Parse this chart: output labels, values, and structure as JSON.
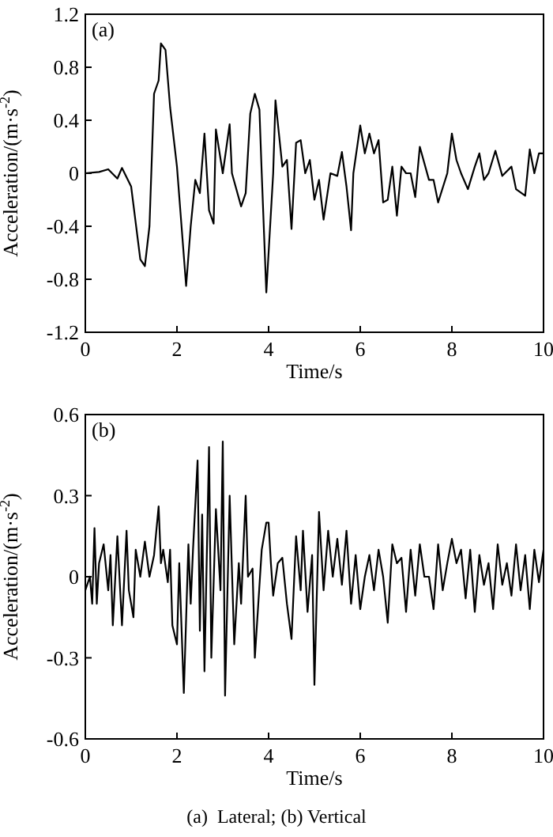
{
  "chart_data": [
    {
      "type": "line",
      "title": "(a)",
      "xlabel": "Time/s",
      "ylabel": "Acceleration/(m·s$^{-2}$)",
      "xlim": [
        0,
        10
      ],
      "xticks": [
        0,
        2,
        4,
        6,
        8,
        10
      ],
      "ylim": [
        -1.2,
        1.2
      ],
      "yticks": [
        -1.2,
        -0.8,
        -0.4,
        0,
        0.4,
        0.8,
        1.2
      ],
      "grid": false,
      "series": [
        {
          "color": "#000000",
          "x": [
            0,
            0.3,
            0.5,
            0.7,
            0.8,
            0.9,
            1.0,
            1.2,
            1.3,
            1.4,
            1.5,
            1.6,
            1.65,
            1.75,
            1.85,
            2.0,
            2.1,
            2.2,
            2.3,
            2.4,
            2.5,
            2.6,
            2.7,
            2.8,
            2.85,
            3.0,
            3.15,
            3.2,
            3.4,
            3.5,
            3.6,
            3.7,
            3.8,
            3.85,
            3.95,
            4.1,
            4.15,
            4.3,
            4.4,
            4.5,
            4.6,
            4.7,
            4.8,
            4.9,
            5.0,
            5.1,
            5.2,
            5.35,
            5.5,
            5.6,
            5.7,
            5.8,
            5.85,
            6.0,
            6.1,
            6.2,
            6.3,
            6.4,
            6.5,
            6.6,
            6.7,
            6.8,
            6.9,
            7.0,
            7.1,
            7.2,
            7.3,
            7.5,
            7.6,
            7.7,
            7.9,
            8.0,
            8.1,
            8.2,
            8.35,
            8.5,
            8.6,
            8.7,
            8.8,
            8.95,
            9.1,
            9.3,
            9.4,
            9.6,
            9.7,
            9.8,
            9.9,
            10
          ],
          "values": [
            0,
            0.01,
            0.03,
            -0.04,
            0.04,
            -0.03,
            -0.1,
            -0.65,
            -0.7,
            -0.4,
            0.6,
            0.7,
            0.98,
            0.93,
            0.5,
            0.05,
            -0.4,
            -0.85,
            -0.4,
            -0.05,
            -0.15,
            0.3,
            -0.28,
            -0.38,
            0.33,
            0,
            0.37,
            0,
            -0.25,
            -0.15,
            0.45,
            0.6,
            0.48,
            0,
            -0.9,
            0,
            0.55,
            0.05,
            0.1,
            -0.42,
            0.23,
            0.25,
            0,
            0.1,
            -0.2,
            -0.05,
            -0.35,
            0,
            -0.02,
            0.16,
            -0.1,
            -0.43,
            0,
            0.36,
            0.15,
            0.3,
            0.15,
            0.25,
            -0.22,
            -0.2,
            0.05,
            -0.32,
            0.05,
            0,
            0,
            -0.18,
            0.2,
            -0.05,
            -0.05,
            -0.22,
            0,
            0.3,
            0.1,
            0,
            -0.12,
            0.05,
            0.15,
            -0.05,
            0,
            0.17,
            -0.02,
            0.05,
            -0.12,
            -0.17,
            0.18,
            0,
            0.15,
            0.15
          ]
        }
      ]
    },
    {
      "type": "line",
      "title": "(b)",
      "xlabel": "Time/s",
      "ylabel": "Acceleration/(m·s$^{-2}$)",
      "xlim": [
        0,
        10
      ],
      "xticks": [
        0,
        2,
        4,
        6,
        8,
        10
      ],
      "ylim": [
        -0.6,
        0.6
      ],
      "yticks": [
        -0.6,
        -0.3,
        0,
        0.3,
        0.6
      ],
      "grid": false,
      "annotations": [
        "(a)  Lateral; (b) Vertical"
      ],
      "series": [
        {
          "color": "#000000",
          "x": [
            0,
            0.1,
            0.15,
            0.2,
            0.25,
            0.3,
            0.4,
            0.5,
            0.55,
            0.6,
            0.7,
            0.8,
            0.9,
            0.95,
            1.05,
            1.1,
            1.2,
            1.3,
            1.4,
            1.5,
            1.6,
            1.65,
            1.7,
            1.8,
            1.85,
            1.9,
            2.0,
            2.05,
            2.15,
            2.25,
            2.3,
            2.35,
            2.45,
            2.5,
            2.55,
            2.6,
            2.7,
            2.75,
            2.85,
            2.95,
            3.0,
            3.05,
            3.15,
            3.25,
            3.35,
            3.4,
            3.5,
            3.55,
            3.65,
            3.7,
            3.85,
            3.95,
            4.0,
            4.05,
            4.1,
            4.2,
            4.3,
            4.4,
            4.5,
            4.6,
            4.7,
            4.75,
            4.85,
            4.95,
            5.0,
            5.1,
            5.2,
            5.3,
            5.4,
            5.5,
            5.6,
            5.7,
            5.8,
            5.9,
            6.0,
            6.1,
            6.2,
            6.3,
            6.4,
            6.5,
            6.6,
            6.7,
            6.8,
            6.9,
            7.0,
            7.1,
            7.2,
            7.3,
            7.4,
            7.5,
            7.6,
            7.7,
            7.8,
            7.9,
            8.0,
            8.1,
            8.2,
            8.3,
            8.4,
            8.5,
            8.6,
            8.7,
            8.8,
            8.9,
            9.0,
            9.1,
            9.2,
            9.3,
            9.4,
            9.5,
            9.6,
            9.7,
            9.8,
            9.9,
            10
          ],
          "values": [
            -0.05,
            0,
            -0.1,
            0.18,
            -0.1,
            0.05,
            0.12,
            -0.05,
            0.08,
            -0.18,
            0.15,
            -0.18,
            0.17,
            -0.05,
            -0.15,
            0.1,
            0,
            0.13,
            0,
            0.08,
            0.26,
            0.05,
            0.1,
            -0.02,
            0.1,
            -0.18,
            -0.25,
            0.05,
            -0.43,
            0.12,
            -0.1,
            0.1,
            0.43,
            -0.2,
            0.23,
            -0.35,
            0.48,
            -0.3,
            0.25,
            -0.05,
            0.5,
            -0.44,
            0.3,
            -0.25,
            0.05,
            -0.1,
            0.3,
            0,
            0.03,
            -0.3,
            0.1,
            0.2,
            0.2,
            0.05,
            -0.07,
            0.05,
            0.07,
            -0.1,
            -0.23,
            0.15,
            -0.05,
            0.17,
            -0.13,
            0.08,
            -0.4,
            0.24,
            -0.05,
            0.17,
            0,
            0.14,
            -0.03,
            0.17,
            -0.1,
            0.08,
            -0.12,
            0,
            0.08,
            -0.05,
            0.1,
            0,
            -0.17,
            0.12,
            0.05,
            0.07,
            -0.13,
            0.1,
            -0.07,
            0.12,
            0,
            0,
            -0.12,
            0.12,
            -0.05,
            0.05,
            0.14,
            0.05,
            0.1,
            -0.08,
            0.1,
            -0.13,
            0.08,
            -0.03,
            0.05,
            -0.12,
            0.12,
            -0.03,
            0.05,
            -0.07,
            0.12,
            -0.05,
            0.08,
            -0.12,
            0.1,
            -0.02,
            0.1
          ]
        }
      ]
    }
  ]
}
